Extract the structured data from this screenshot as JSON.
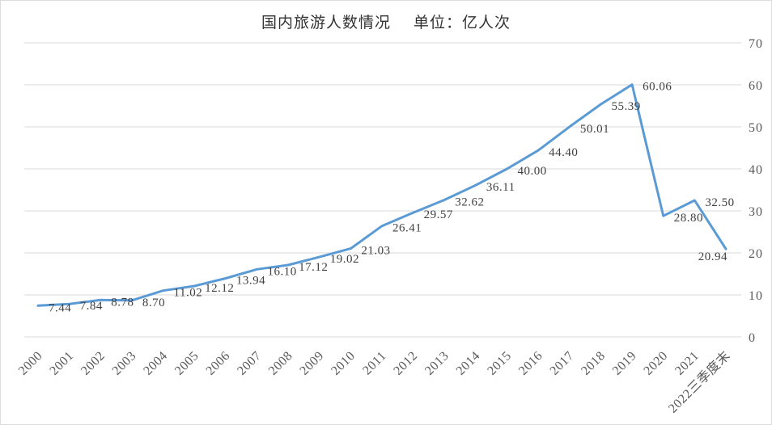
{
  "chart_data": {
    "type": "line",
    "title": "国内旅游人数情况",
    "subtitle": "单位：亿人次",
    "xlabel": "",
    "ylabel": "",
    "categories": [
      "2000",
      "2001",
      "2002",
      "2003",
      "2004",
      "2005",
      "2006",
      "2007",
      "2008",
      "2009",
      "2010",
      "2011",
      "2012",
      "2013",
      "2014",
      "2015",
      "2016",
      "2017",
      "2018",
      "2019",
      "2020",
      "2021",
      "2022三季度末"
    ],
    "values": [
      7.44,
      7.84,
      8.78,
      8.7,
      11.02,
      12.12,
      13.94,
      16.1,
      17.12,
      19.02,
      21.03,
      26.41,
      29.57,
      32.62,
      36.11,
      40.0,
      44.4,
      50.01,
      55.39,
      60.06,
      28.8,
      32.5,
      20.94
    ],
    "value_labels": [
      "7.44",
      "7.84",
      "8.78",
      "8.70",
      "11.02",
      "12.12",
      "13.94",
      "16.10",
      "17.12",
      "19.02",
      "21.03",
      "26.41",
      "29.57",
      "32.62",
      "36.11",
      "40.00",
      "44.40",
      "50.01",
      "55.39",
      "60.06",
      "28.80",
      "32.50",
      "20.94"
    ],
    "y_axis": {
      "side": "right",
      "min": 0,
      "max": 70,
      "step": 10,
      "ticks": [
        "0",
        "10",
        "20",
        "30",
        "40",
        "50",
        "60",
        "70"
      ]
    },
    "grid": true,
    "legend_position": "none",
    "colors": {
      "line": "#5b9bd5",
      "grid": "#d9d9d9",
      "axis_text": "#595959",
      "data_label_text": "#404040",
      "title_text": "#333333",
      "background": "#ffffff",
      "border": "#dcdcdc"
    }
  }
}
